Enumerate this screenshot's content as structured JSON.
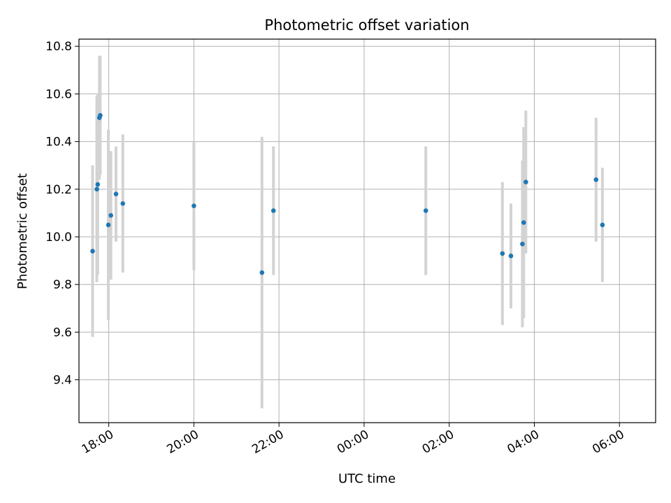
{
  "chart_data": {
    "type": "scatter",
    "title": "Photometric offset variation",
    "xlabel": "UTC time",
    "ylabel": "Photometric offset",
    "x_unit": "hours",
    "xlim": [
      17.3,
      30.85
    ],
    "ylim": [
      9.22,
      10.83
    ],
    "grid": true,
    "legend": "none",
    "x_ticks": [
      {
        "value": 18,
        "label": "18:00"
      },
      {
        "value": 20,
        "label": "20:00"
      },
      {
        "value": 22,
        "label": "22:00"
      },
      {
        "value": 24,
        "label": "00:00"
      },
      {
        "value": 26,
        "label": "02:00"
      },
      {
        "value": 28,
        "label": "04:00"
      },
      {
        "value": 30,
        "label": "06:00"
      }
    ],
    "y_ticks": [
      {
        "value": 9.4,
        "label": "9.4"
      },
      {
        "value": 9.6,
        "label": "9.6"
      },
      {
        "value": 9.8,
        "label": "9.8"
      },
      {
        "value": 10.0,
        "label": "10.0"
      },
      {
        "value": 10.2,
        "label": "10.2"
      },
      {
        "value": 10.4,
        "label": "10.4"
      },
      {
        "value": 10.6,
        "label": "10.6"
      },
      {
        "value": 10.8,
        "label": "10.8"
      }
    ],
    "marker_color": "#1f77b4",
    "errorbar_color": "#d3d3d3",
    "points": [
      {
        "x": 17.62,
        "y": 9.94,
        "err": 0.36
      },
      {
        "x": 17.72,
        "y": 10.2,
        "err": 0.39
      },
      {
        "x": 17.74,
        "y": 10.22,
        "err": 0.38
      },
      {
        "x": 17.78,
        "y": 10.5,
        "err": 0.26
      },
      {
        "x": 17.8,
        "y": 10.51,
        "err": 0.25
      },
      {
        "x": 17.99,
        "y": 10.05,
        "err": 0.4
      },
      {
        "x": 18.05,
        "y": 10.09,
        "err": 0.27
      },
      {
        "x": 18.17,
        "y": 10.18,
        "err": 0.2
      },
      {
        "x": 18.33,
        "y": 10.14,
        "err": 0.29
      },
      {
        "x": 20.0,
        "y": 10.13,
        "err": 0.27
      },
      {
        "x": 21.6,
        "y": 9.85,
        "err": 0.57
      },
      {
        "x": 21.87,
        "y": 10.11,
        "err": 0.27
      },
      {
        "x": 25.45,
        "y": 10.11,
        "err": 0.27
      },
      {
        "x": 27.25,
        "y": 9.93,
        "err": 0.3
      },
      {
        "x": 27.45,
        "y": 9.92,
        "err": 0.22
      },
      {
        "x": 27.72,
        "y": 9.97,
        "err": 0.35
      },
      {
        "x": 27.75,
        "y": 10.06,
        "err": 0.4
      },
      {
        "x": 27.8,
        "y": 10.23,
        "err": 0.3
      },
      {
        "x": 29.45,
        "y": 10.24,
        "err": 0.26
      },
      {
        "x": 29.6,
        "y": 10.05,
        "err": 0.24
      }
    ]
  }
}
